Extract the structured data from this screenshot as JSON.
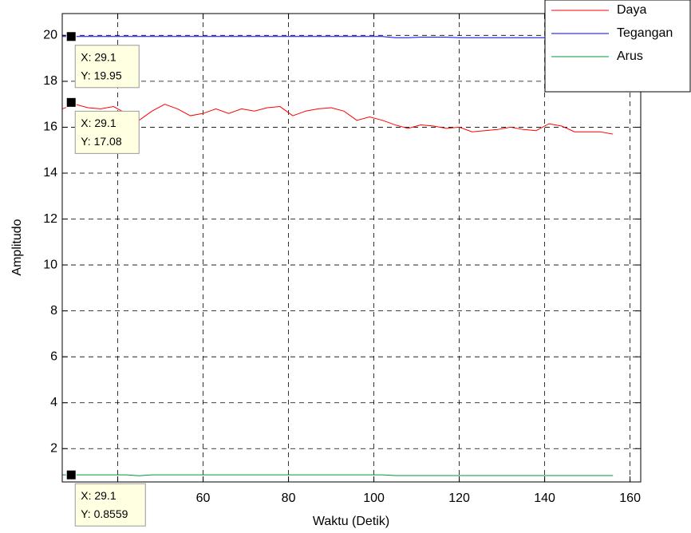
{
  "chart_data": {
    "type": "line",
    "xlabel": "Waktu (Detik)",
    "ylabel": "Amplitudo",
    "x": [
      27,
      30,
      33,
      36,
      39,
      42,
      45,
      48,
      51,
      54,
      57,
      60,
      63,
      66,
      69,
      72,
      75,
      78,
      81,
      84,
      87,
      90,
      93,
      96,
      99,
      102,
      105,
      108,
      111,
      114,
      117,
      120,
      123,
      126,
      129,
      132,
      135,
      138,
      141,
      144,
      147,
      150,
      153,
      156
    ],
    "series": [
      {
        "name": "Daya",
        "color": "#ff0000",
        "values": [
          16.8,
          17.0,
          16.85,
          16.8,
          16.9,
          16.6,
          16.3,
          16.7,
          17.0,
          16.8,
          16.5,
          16.6,
          16.8,
          16.6,
          16.8,
          16.7,
          16.85,
          16.9,
          16.5,
          16.7,
          16.8,
          16.85,
          16.7,
          16.3,
          16.45,
          16.3,
          16.1,
          15.95,
          16.1,
          16.05,
          15.95,
          16.0,
          15.8,
          15.85,
          15.9,
          16.0,
          15.9,
          15.85,
          16.15,
          16.05,
          15.8,
          15.8,
          15.8,
          15.7
        ]
      },
      {
        "name": "Tegangan",
        "color": "#0000ff",
        "values": [
          19.95,
          19.95,
          19.95,
          19.95,
          19.95,
          19.95,
          19.95,
          19.95,
          19.95,
          19.95,
          19.95,
          19.95,
          19.95,
          19.95,
          19.95,
          19.95,
          19.95,
          19.95,
          19.95,
          19.95,
          19.95,
          19.95,
          19.95,
          19.95,
          19.95,
          19.95,
          19.9,
          19.9,
          19.92,
          19.92,
          19.92,
          19.9,
          19.9,
          19.9,
          19.9,
          19.9,
          19.9,
          19.9,
          19.9,
          19.9,
          19.9,
          19.9,
          19.9,
          19.9
        ]
      },
      {
        "name": "Arus",
        "color": "#009933",
        "values": [
          0.86,
          0.86,
          0.86,
          0.86,
          0.86,
          0.86,
          0.82,
          0.86,
          0.86,
          0.86,
          0.86,
          0.86,
          0.86,
          0.86,
          0.86,
          0.86,
          0.86,
          0.86,
          0.86,
          0.86,
          0.86,
          0.86,
          0.86,
          0.86,
          0.86,
          0.86,
          0.83,
          0.83,
          0.83,
          0.83,
          0.83,
          0.83,
          0.83,
          0.83,
          0.83,
          0.83,
          0.83,
          0.83,
          0.83,
          0.83,
          0.83,
          0.83,
          0.83,
          0.83
        ]
      }
    ],
    "xlim": [
      27,
      162.5
    ],
    "ylim": [
      0.55,
      20.95
    ],
    "xticks": [
      40,
      60,
      80,
      100,
      120,
      140,
      160
    ],
    "yticks": [
      2,
      4,
      6,
      8,
      10,
      12,
      14,
      16,
      18,
      20
    ],
    "grid": true,
    "legend": "upper right",
    "datatips": [
      {
        "x": 29.1,
        "y": 19.95,
        "x_label": "X: 29.1",
        "y_label": "Y: 19.95"
      },
      {
        "x": 29.1,
        "y": 17.08,
        "x_label": "X: 29.1",
        "y_label": "Y: 17.08"
      },
      {
        "x": 29.1,
        "y": 0.8559,
        "x_label": "X: 29.1",
        "y_label": "Y: 0.8559"
      }
    ]
  }
}
